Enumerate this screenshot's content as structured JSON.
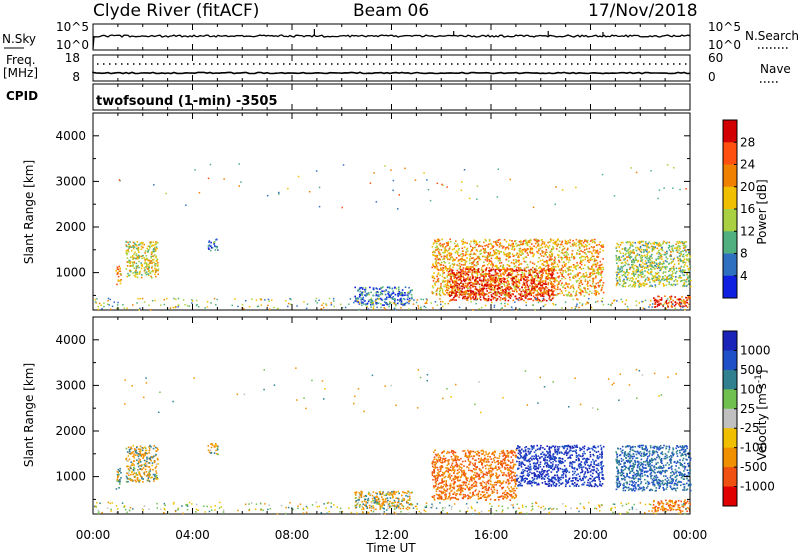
{
  "header": {
    "station": "Clyde River (fitACF)",
    "beam": "Beam 06",
    "date": "17/Nov/2018"
  },
  "strip_panel": {
    "nsky_label": "N.Sky",
    "nsky_ticks": [
      "10^5",
      "10^0"
    ],
    "nsearch_label": "N.Search",
    "nsearch_ticks": [
      "10^5",
      "10^0"
    ],
    "freq_label": "Freq.",
    "freq_unit": "[MHz]",
    "freq_ticks": [
      "18",
      "8"
    ],
    "nave_label": "Nave",
    "nave_ticks": [
      "60",
      "0"
    ],
    "cpid_label": "CPID",
    "cpid_text": "twofsound (1-min) -3505"
  },
  "time_axis": {
    "label": "Time UT",
    "ticks": [
      "00:00",
      "04:00",
      "08:00",
      "12:00",
      "16:00",
      "20:00",
      "00:00"
    ]
  },
  "power_colorbar": {
    "label": "Power [dB]",
    "ticks": [
      "28",
      "24",
      "20",
      "16",
      "12",
      "8",
      "4"
    ],
    "colors": [
      "#d20000",
      "#ff5010",
      "#f08000",
      "#f0c000",
      "#a8d040",
      "#50b080",
      "#3070c0",
      "#1020e0"
    ]
  },
  "velocity_colorbar": {
    "label": "Velocity [m s^-1]",
    "ticks": [
      "1000",
      "500",
      "100",
      "25",
      "-25",
      "-100",
      "-500",
      "-1000"
    ],
    "colors": [
      "#1a24b8",
      "#2050c8",
      "#308090",
      "#70c050",
      "#c0c0c0",
      "#f0c000",
      "#f09000",
      "#f05010",
      "#e00000"
    ]
  },
  "chart_data": [
    {
      "type": "heatmap",
      "title": "",
      "xlabel": "Time UT",
      "ylabel": "Slant Range [km]",
      "yticks": [
        1000,
        2000,
        3000,
        4000
      ],
      "xlim_hours": [
        0,
        24
      ],
      "ylim_km": [
        180,
        4500
      ],
      "colorbar": "Power [dB]",
      "scatter_regions": [
        {
          "t_start": 0.9,
          "t_end": 1.1,
          "r_start": 700,
          "r_end": 1200,
          "value_db": 22
        },
        {
          "t_start": 1.3,
          "t_end": 2.6,
          "r_start": 900,
          "r_end": 1700,
          "value_db": 16
        },
        {
          "t_start": 4.6,
          "t_end": 5.0,
          "r_start": 1500,
          "r_end": 1750,
          "value_db": 6
        },
        {
          "t_start": 10.5,
          "t_end": 12.8,
          "r_start": 300,
          "r_end": 700,
          "value_db": 6
        },
        {
          "t_start": 13.6,
          "t_end": 20.5,
          "r_start": 500,
          "r_end": 1750,
          "value_db": 20
        },
        {
          "t_start": 14.3,
          "t_end": 18.5,
          "r_start": 400,
          "r_end": 1100,
          "value_db": 28
        },
        {
          "t_start": 21.0,
          "t_end": 24.0,
          "r_start": 700,
          "r_end": 1700,
          "value_db": 14
        },
        {
          "t_start": 22.5,
          "t_end": 24.0,
          "r_start": 250,
          "r_end": 500,
          "value_db": 28
        }
      ]
    },
    {
      "type": "heatmap",
      "title": "",
      "xlabel": "Time UT",
      "ylabel": "Slant Range [km]",
      "yticks": [
        1000,
        2000,
        3000,
        4000
      ],
      "xlim_hours": [
        0,
        24
      ],
      "ylim_km": [
        180,
        4500
      ],
      "colorbar": "Velocity [m s^-1]",
      "scatter_regions": [
        {
          "t_start": 0.9,
          "t_end": 1.1,
          "r_start": 700,
          "r_end": 1200,
          "value_ms": 100
        },
        {
          "t_start": 1.3,
          "t_end": 2.6,
          "r_start": 900,
          "r_end": 1700,
          "value_ms": -100
        },
        {
          "t_start": 4.6,
          "t_end": 5.0,
          "r_start": 1500,
          "r_end": 1750,
          "value_ms": -100
        },
        {
          "t_start": 10.5,
          "t_end": 12.8,
          "r_start": 300,
          "r_end": 700,
          "value_ms": -100
        },
        {
          "t_start": 13.6,
          "t_end": 17.0,
          "r_start": 500,
          "r_end": 1600,
          "value_ms": -500
        },
        {
          "t_start": 17.0,
          "t_end": 20.5,
          "r_start": 800,
          "r_end": 1700,
          "value_ms": 1000
        },
        {
          "t_start": 21.0,
          "t_end": 24.0,
          "r_start": 700,
          "r_end": 1700,
          "value_ms": 500
        },
        {
          "t_start": 22.5,
          "t_end": 24.0,
          "r_start": 250,
          "r_end": 500,
          "value_ms": -500
        }
      ]
    }
  ]
}
